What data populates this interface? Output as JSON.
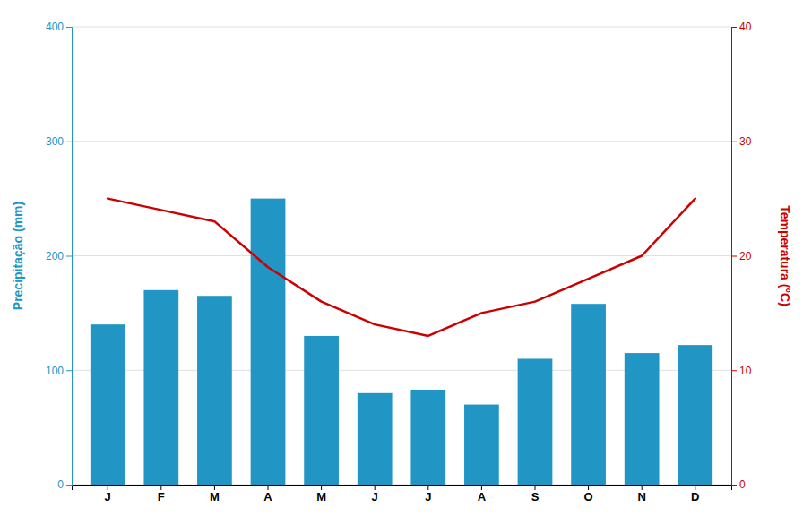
{
  "chart_data": {
    "type": "bar",
    "categories": [
      "J",
      "F",
      "M",
      "A",
      "M",
      "J",
      "J",
      "A",
      "S",
      "O",
      "N",
      "D"
    ],
    "series": [
      {
        "type": "bar",
        "color": "#2196c4",
        "values": [
          140,
          170,
          165,
          250,
          130,
          80,
          83,
          70,
          110,
          158,
          115,
          122
        ]
      },
      {
        "type": "line",
        "color": "#cc0000",
        "axis": "y2",
        "values": [
          25,
          24,
          23,
          19,
          16,
          14,
          13,
          15,
          16,
          18,
          20,
          25
        ]
      }
    ],
    "y_label": "Precipitação (mm)",
    "y2_label": "Temperatura (°C)",
    "ylim": [
      0,
      400
    ],
    "yticks": [
      0,
      100,
      200,
      300,
      400
    ],
    "y2lim": [
      0,
      40
    ],
    "y2ticks": [
      0,
      10,
      20,
      30,
      40
    ],
    "grid": true
  }
}
